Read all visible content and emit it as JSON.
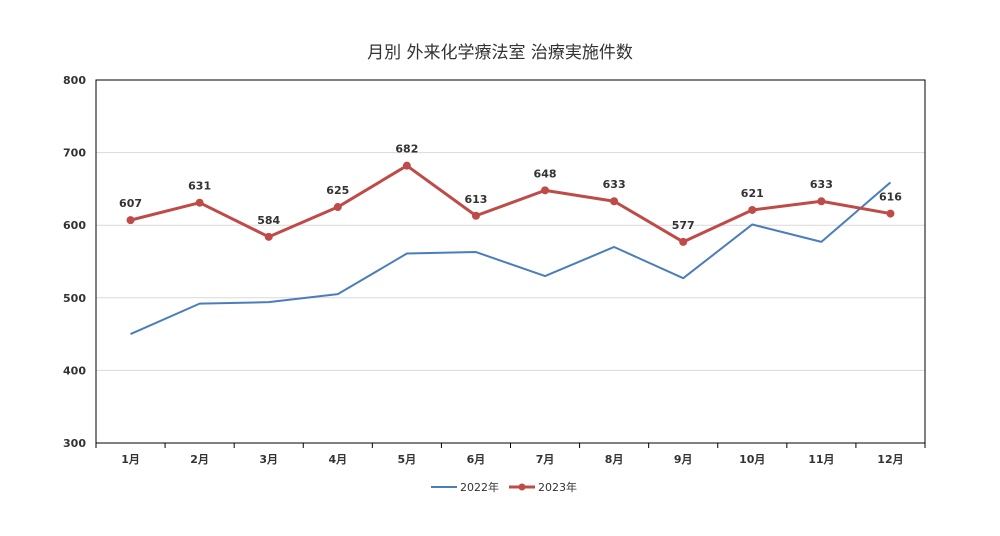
{
  "chart_data": {
    "type": "line",
    "title": "月別 外来化学療法室 治療実施件数",
    "xlabel": "",
    "ylabel": "",
    "categories": [
      "1月",
      "2月",
      "3月",
      "4月",
      "5月",
      "6月",
      "7月",
      "8月",
      "9月",
      "10月",
      "11月",
      "12月"
    ],
    "ylim": [
      300,
      800
    ],
    "yticks": [
      "300",
      "400",
      "500",
      "600",
      "700",
      "800"
    ],
    "grid": true,
    "legend_position": "bottom",
    "series": [
      {
        "name": "2022年",
        "color": "#4a7ebb",
        "markers": false,
        "data_labels": false,
        "values": [
          450,
          492,
          494,
          505,
          561,
          563,
          530,
          570,
          527,
          601,
          577,
          659
        ]
      },
      {
        "name": "2023年",
        "color": "#be4b48",
        "markers": true,
        "data_labels": true,
        "values": [
          607,
          631,
          584,
          625,
          682,
          613,
          648,
          633,
          577,
          621,
          633,
          616
        ]
      }
    ]
  }
}
